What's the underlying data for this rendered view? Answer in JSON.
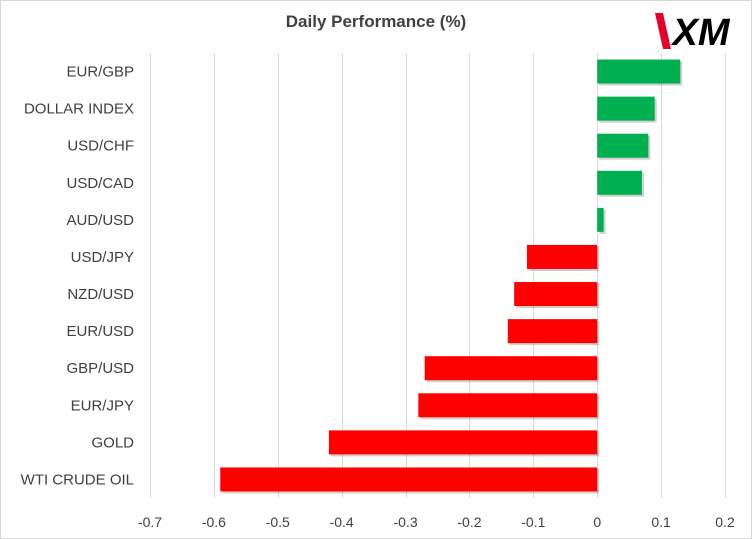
{
  "chart_data": {
    "type": "bar",
    "orientation": "horizontal",
    "title": "Daily Performance  (%)",
    "categories": [
      "EUR/GBP",
      "DOLLAR INDEX",
      "USD/CHF",
      "USD/CAD",
      "AUD/USD",
      "USD/JPY",
      "NZD/USD",
      "EUR/USD",
      "GBP/USD",
      "EUR/JPY",
      "GOLD",
      "WTI CRUDE OIL"
    ],
    "values": [
      0.13,
      0.09,
      0.08,
      0.07,
      0.01,
      -0.11,
      -0.13,
      -0.14,
      -0.27,
      -0.28,
      -0.42,
      -0.59
    ],
    "xlim": [
      -0.7,
      0.2
    ],
    "xticks": [
      -0.7,
      -0.6,
      -0.5,
      -0.4,
      -0.3,
      -0.2,
      -0.1,
      0,
      0.1,
      0.2
    ],
    "xtick_labels": [
      "-0.7",
      "-0.6",
      "-0.5",
      "-0.4",
      "-0.3",
      "-0.2",
      "-0.1",
      "0",
      "0.1",
      "0.2"
    ],
    "grid": true,
    "legend": "none",
    "colors": {
      "positive": "#00b050",
      "negative": "#ff0000",
      "grid": "#d9d9d9",
      "text": "#404040"
    }
  },
  "logo": {
    "text": "XM",
    "accent": "#e4002b",
    "color": "#000000"
  }
}
